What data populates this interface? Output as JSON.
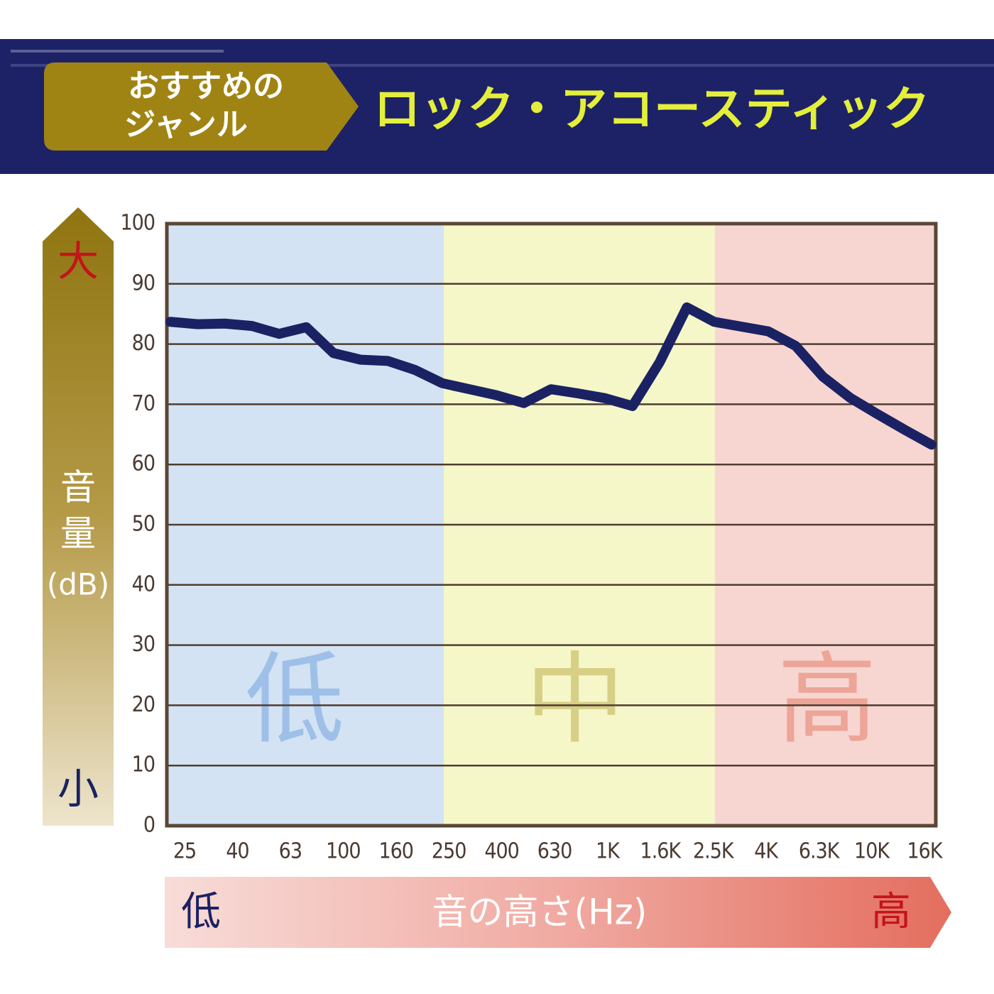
{
  "header": {
    "label_lines": [
      "おすすめの",
      "ジャンル"
    ],
    "genre": "ロック・アコースティック"
  },
  "chart_data": {
    "type": "line",
    "y_axis_label": "音量",
    "y_axis_unit": "(dB)",
    "y_axis_high": "大",
    "y_axis_low": "小",
    "x_axis_label": "音の高さ(Hz)",
    "x_axis_low": "低",
    "x_axis_high": "高",
    "bands": [
      "低",
      "中",
      "高"
    ],
    "categories": [
      "25",
      null,
      "40",
      null,
      "63",
      null,
      "100",
      null,
      "160",
      null,
      "250",
      null,
      "400",
      null,
      "630",
      null,
      "1K",
      null,
      "1.6K",
      null,
      "2.5K",
      null,
      "4K",
      null,
      "6.3K",
      null,
      "10K",
      null,
      "16K"
    ],
    "series": [
      {
        "name": null,
        "color": "#1b2263",
        "values": [
          83.7,
          83.3,
          83.4,
          83.0,
          81.7,
          82.8,
          78.5,
          77.4,
          77.2,
          75.7,
          73.5,
          72.5,
          71.5,
          70.2,
          72.5,
          71.8,
          71.0,
          69.7,
          77.0,
          86.1,
          83.7,
          82.9,
          82.1,
          79.7,
          74.6,
          71.1,
          68.4,
          65.8,
          63.3
        ]
      }
    ],
    "ylim": [
      0,
      100
    ],
    "yticks": [
      0,
      10,
      20,
      30,
      40,
      50,
      60,
      70,
      80,
      90,
      100
    ],
    "grid": true
  }
}
